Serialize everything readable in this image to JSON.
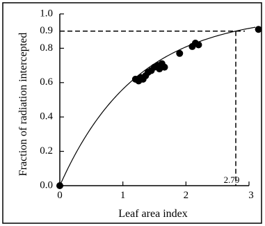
{
  "chart_data": {
    "type": "scatter",
    "title": "",
    "xlabel": "Leaf area index",
    "ylabel": "Fraction of radiation intercepted",
    "xlim": [
      0,
      3
    ],
    "ylim": [
      0,
      1.0
    ],
    "x_ticks": [
      {
        "value": 0,
        "label": "0"
      },
      {
        "value": 1,
        "label": "1"
      },
      {
        "value": 2,
        "label": "2"
      },
      {
        "value": 3,
        "label": "3"
      }
    ],
    "y_ticks": [
      {
        "value": 0.0,
        "label": "0.0"
      },
      {
        "value": 0.2,
        "label": "0.2"
      },
      {
        "value": 0.4,
        "label": "0.4"
      },
      {
        "value": 0.6,
        "label": "0.6"
      },
      {
        "value": 0.8,
        "label": "0.8"
      },
      {
        "value": 1.0,
        "label": "1.0"
      }
    ],
    "reference": {
      "x": 2.79,
      "x_label": "2.79",
      "y": 0.9,
      "y_label": "0.9",
      "style": "dashed"
    },
    "fitted_curve": {
      "equation_form": "y = 1 - exp(-k*x)",
      "k": 0.825
    },
    "series": [
      {
        "points": [
          {
            "x": 0,
            "y": 0
          },
          {
            "x": 1.2,
            "y": 0.62
          },
          {
            "x": 1.25,
            "y": 0.61
          },
          {
            "x": 1.28,
            "y": 0.63
          },
          {
            "x": 1.32,
            "y": 0.62
          },
          {
            "x": 1.36,
            "y": 0.64
          },
          {
            "x": 1.4,
            "y": 0.66
          },
          {
            "x": 1.45,
            "y": 0.67
          },
          {
            "x": 1.5,
            "y": 0.69
          },
          {
            "x": 1.55,
            "y": 0.7
          },
          {
            "x": 1.58,
            "y": 0.68
          },
          {
            "x": 1.62,
            "y": 0.71
          },
          {
            "x": 1.66,
            "y": 0.69
          },
          {
            "x": 1.9,
            "y": 0.77
          },
          {
            "x": 2.1,
            "y": 0.81
          },
          {
            "x": 2.15,
            "y": 0.83
          },
          {
            "x": 2.2,
            "y": 0.82
          },
          {
            "x": 3.15,
            "y": 0.91
          }
        ]
      }
    ],
    "grid": false,
    "legend": "none",
    "colors": {
      "marks": "#000000",
      "frame": "#000000",
      "background": "#ffffff"
    }
  }
}
